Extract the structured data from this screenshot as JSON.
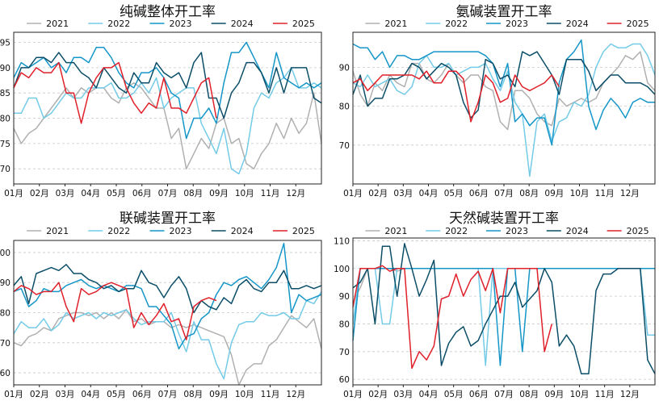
{
  "colors": {
    "2021": "#b0b0b0",
    "2022": "#74cbe8",
    "2023": "#1596c8",
    "2024": "#0c4e68",
    "2025": "#e0202a"
  },
  "chart_data": [
    {
      "type": "line",
      "title": "纯碱整体开工率",
      "x_ticks": [
        "01月",
        "02月",
        "03月",
        "04月",
        "05月",
        "06月",
        "07月",
        "08月",
        "09月",
        "10月",
        "11月",
        "12月"
      ],
      "ylim": [
        67,
        97
      ],
      "y_ticks": [
        70,
        75,
        80,
        85,
        90,
        95
      ],
      "grid": true,
      "legend": "top",
      "series": [
        {
          "name": "2021",
          "color": "#b0b0b0",
          "values": [
            78,
            75,
            77,
            78,
            80,
            82,
            84,
            86,
            84,
            86,
            85,
            86,
            86,
            84,
            83,
            86,
            87,
            86,
            84,
            82,
            82,
            76,
            78,
            70,
            73,
            76,
            74,
            79,
            80,
            75,
            76,
            71,
            70,
            73,
            75,
            79,
            76,
            80,
            77,
            79,
            85,
            75
          ]
        },
        {
          "name": "2022",
          "color": "#74cbe8",
          "values": [
            81,
            81,
            84,
            84,
            80,
            81,
            83,
            85,
            84,
            84,
            86,
            86,
            86,
            87,
            84,
            84,
            85,
            87,
            85,
            88,
            82,
            84,
            85,
            86,
            86,
            79,
            76,
            73,
            78,
            70,
            69,
            73,
            82,
            85,
            84,
            87,
            88,
            90,
            86,
            86,
            87,
            86
          ]
        },
        {
          "name": "2023",
          "color": "#1596c8",
          "values": [
            88,
            91,
            90,
            91,
            92,
            90,
            91,
            89,
            92,
            92,
            91,
            94,
            94,
            92,
            89,
            87,
            86,
            89,
            89,
            90,
            88,
            85,
            84,
            76,
            80,
            80,
            82,
            79,
            87,
            93,
            93,
            95,
            92,
            89,
            86,
            93,
            88,
            87,
            86,
            87,
            86,
            87
          ]
        },
        {
          "name": "2024",
          "color": "#0c4e68",
          "values": [
            86,
            90,
            90,
            92,
            92,
            91,
            93,
            91,
            91,
            89,
            88,
            86,
            90,
            88,
            86,
            85,
            89,
            87,
            87,
            91,
            89,
            88,
            89,
            86,
            91,
            93,
            84,
            84,
            80,
            85,
            87,
            91,
            91,
            89,
            85,
            90,
            85,
            90,
            90,
            90,
            84,
            83
          ]
        },
        {
          "name": "2025",
          "color": "#e0202a",
          "values": [
            86,
            89,
            88,
            90,
            89,
            89,
            91,
            85,
            85,
            79,
            85,
            88,
            90,
            90,
            91,
            86,
            83,
            81,
            83,
            82,
            88,
            82,
            82,
            81,
            84,
            87,
            88,
            80
          ]
        }
      ]
    },
    {
      "type": "line",
      "title": "氨碱装置开工率",
      "x_ticks": [
        "01月",
        "02月",
        "03月",
        "04月",
        "05月",
        "06月",
        "07月",
        "08月",
        "09月",
        "10月",
        "11月",
        "12月"
      ],
      "ylim": [
        60,
        99
      ],
      "y_ticks": [
        70,
        80,
        90
      ],
      "grid": true,
      "legend": "top",
      "series": [
        {
          "name": "2021",
          "color": "#b0b0b0",
          "values": [
            89,
            83,
            80,
            86,
            84,
            88,
            86,
            85,
            91,
            91,
            87,
            86,
            88,
            91,
            88,
            86,
            88,
            88,
            85,
            84,
            76,
            74,
            84,
            84,
            82,
            78,
            76,
            75,
            82,
            80,
            81,
            82,
            81,
            82,
            86,
            88,
            90,
            93,
            92,
            94,
            86,
            84
          ]
        },
        {
          "name": "2022",
          "color": "#74cbe8",
          "values": [
            86,
            85,
            88,
            85,
            86,
            87,
            84,
            83,
            85,
            91,
            93,
            90,
            90,
            91,
            88,
            89,
            90,
            90,
            91,
            87,
            84,
            89,
            81,
            78,
            62,
            76,
            78,
            71,
            76,
            77,
            81,
            80,
            83,
            90,
            94,
            96,
            95,
            95,
            96,
            96,
            93,
            88
          ]
        },
        {
          "name": "2023",
          "color": "#1596c8",
          "values": [
            96,
            95,
            95,
            92,
            94,
            90,
            93,
            93,
            92,
            92,
            93,
            94,
            94,
            94,
            94,
            94,
            94,
            94,
            93,
            91,
            85,
            91,
            76,
            78,
            75,
            77,
            77,
            70,
            86,
            92,
            94,
            97,
            80,
            74,
            79,
            82,
            80,
            77,
            81,
            82,
            81,
            81
          ]
        },
        {
          "name": "2024",
          "color": "#0c4e68",
          "values": [
            83,
            88,
            80,
            82,
            82,
            87,
            87,
            88,
            91,
            90,
            87,
            89,
            91,
            90,
            88,
            81,
            77,
            79,
            92,
            91,
            87,
            88,
            85,
            94,
            93,
            94,
            91,
            88,
            83,
            92,
            92,
            92,
            89,
            84,
            86,
            88,
            88,
            86,
            86,
            86,
            85,
            83
          ]
        },
        {
          "name": "2025",
          "color": "#e0202a",
          "values": [
            86,
            87,
            84,
            86,
            88,
            88,
            88,
            88,
            88,
            87,
            89,
            86,
            86,
            89,
            89,
            87,
            76,
            81,
            88,
            86,
            81,
            82,
            88,
            85,
            84,
            85,
            86,
            88,
            85
          ]
        }
      ]
    },
    {
      "type": "line",
      "title": "联碱装置开工率",
      "x_ticks": [
        "01月",
        "02月",
        "03月",
        "04月",
        "05月",
        "06月",
        "07月",
        "08月",
        "09月",
        "10月",
        "11月",
        "12月"
      ],
      "ylim": [
        56,
        104
      ],
      "y_ticks": [
        60,
        70,
        80,
        90,
        100
      ],
      "grid": true,
      "legend": "top",
      "series": [
        {
          "name": "2021",
          "color": "#b0b0b0",
          "values": [
            70,
            69,
            72,
            73,
            75,
            74,
            78,
            79,
            80,
            80,
            79,
            80,
            78,
            80,
            78,
            81,
            77,
            78,
            76,
            77,
            77,
            75,
            76,
            75,
            76,
            75,
            74,
            73,
            72,
            66,
            56,
            61,
            63,
            63,
            69,
            71,
            75,
            79,
            77,
            75,
            78,
            68
          ]
        },
        {
          "name": "2022",
          "color": "#74cbe8",
          "values": [
            73,
            77,
            75,
            75,
            78,
            74,
            76,
            80,
            78,
            79,
            80,
            78,
            80,
            79,
            80,
            81,
            78,
            76,
            77,
            77,
            77,
            80,
            73,
            67,
            77,
            71,
            71,
            63,
            58,
            70,
            76,
            77,
            77,
            80,
            79,
            79,
            80,
            78,
            78,
            84,
            83,
            87
          ]
        },
        {
          "name": "2023",
          "color": "#1596c8",
          "values": [
            87,
            88,
            82,
            84,
            88,
            87,
            87,
            89,
            90,
            91,
            89,
            88,
            89,
            88,
            87,
            89,
            89,
            88,
            82,
            82,
            79,
            76,
            68,
            72,
            73,
            78,
            80,
            86,
            90,
            89,
            91,
            92,
            90,
            88,
            91,
            95,
            103,
            80,
            86,
            84,
            85,
            86
          ]
        },
        {
          "name": "2024",
          "color": "#0c4e68",
          "values": [
            89,
            92,
            83,
            93,
            94,
            95,
            94,
            96,
            93,
            93,
            91,
            90,
            88,
            89,
            87,
            88,
            88,
            94,
            90,
            89,
            85,
            89,
            92,
            88,
            80,
            84,
            82,
            81,
            85,
            83,
            89,
            91,
            88,
            87,
            90,
            90,
            94,
            88,
            88,
            89,
            88,
            89
          ]
        },
        {
          "name": "2025",
          "color": "#e0202a",
          "values": [
            87,
            89,
            88,
            86,
            87,
            87,
            90,
            82,
            77,
            88,
            86,
            87,
            89,
            90,
            89,
            88,
            75,
            80,
            76,
            79,
            83,
            77,
            78,
            71,
            82,
            84,
            85,
            84
          ]
        }
      ]
    },
    {
      "type": "line",
      "title": "天然碱装置开工率",
      "x_ticks": [
        "01月",
        "02月",
        "03月",
        "04月",
        "05月",
        "06月",
        "07月",
        "08月",
        "09月",
        "10月",
        "11月",
        "12月"
      ],
      "ylim": [
        58,
        111
      ],
      "y_ticks": [
        60,
        70,
        80,
        90,
        100,
        110
      ],
      "grid": true,
      "legend": "top",
      "series": [
        {
          "name": "2021",
          "color": "#b0b0b0",
          "values": [
            88,
            93,
            100,
            100,
            100,
            100,
            99,
            100,
            100,
            100,
            100,
            100,
            100,
            100,
            100,
            100,
            100,
            100,
            100,
            100,
            100,
            100,
            100,
            100,
            100,
            100,
            100,
            100,
            100,
            100,
            100,
            100,
            100,
            100,
            100,
            100,
            100,
            100,
            100,
            100,
            76,
            76
          ]
        },
        {
          "name": "2022",
          "color": "#74cbe8",
          "values": [
            80,
            100,
            100,
            100,
            80,
            80,
            100,
            100,
            100,
            100,
            100,
            100,
            100,
            100,
            100,
            100,
            100,
            100,
            65,
            100,
            100,
            100,
            100,
            100,
            100,
            100,
            100,
            100,
            100,
            100,
            100,
            100,
            100,
            100,
            100,
            100,
            100,
            100,
            100,
            100,
            76,
            76
          ]
        },
        {
          "name": "2023",
          "color": "#1596c8",
          "values": [
            74,
            100,
            100,
            100,
            100,
            100,
            100,
            100,
            100,
            100,
            100,
            100,
            100,
            100,
            100,
            100,
            100,
            100,
            100,
            100,
            65,
            100,
            100,
            70,
            100,
            100,
            100,
            100,
            100,
            100,
            100,
            100,
            100,
            100,
            100,
            100,
            100,
            100,
            100,
            100,
            100,
            100
          ]
        },
        {
          "name": "2024",
          "color": "#0c4e68",
          "values": [
            93,
            95,
            100,
            80,
            108,
            108,
            90,
            109,
            100,
            90,
            96,
            103,
            65,
            73,
            77,
            79,
            72,
            74,
            80,
            85,
            90,
            90,
            95,
            86,
            89,
            92,
            100,
            95,
            72,
            76,
            72,
            62,
            62,
            92,
            98,
            98,
            100,
            100,
            100,
            100,
            67,
            62
          ]
        },
        {
          "name": "2025",
          "color": "#e0202a",
          "values": [
            86,
            100,
            100,
            100,
            101,
            99,
            100,
            100,
            64,
            70,
            67,
            72,
            89,
            90,
            98,
            90,
            96,
            99,
            92,
            100,
            84,
            100,
            100,
            100,
            100,
            100,
            70,
            80
          ]
        }
      ]
    }
  ]
}
